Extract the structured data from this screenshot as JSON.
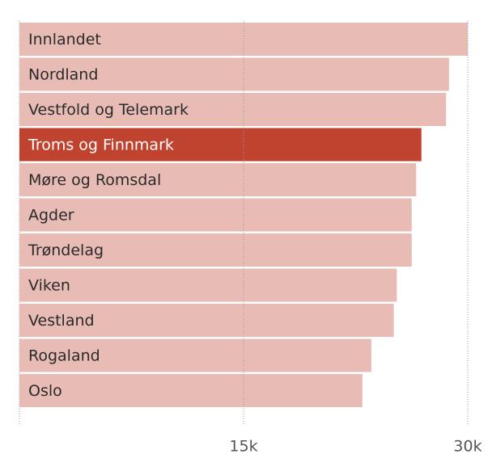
{
  "chart_data": {
    "type": "barh",
    "categories": [
      "Innlandet",
      "Nordland",
      "Vestfold og Telemark",
      "Troms og Finnmark",
      "Møre og Romsdal",
      "Agder",
      "Trøndelag",
      "Viken",
      "Vestland",
      "Rogaland",
      "Oslo"
    ],
    "values": [
      30000,
      28750,
      28550,
      26900,
      26550,
      26250,
      26250,
      25250,
      25050,
      23550,
      22950
    ],
    "colors": [
      "#e8bcb5",
      "#e8bcb5",
      "#e8bcb5",
      "#c0432f",
      "#e8bcb5",
      "#e8bcb5",
      "#e8bcb5",
      "#e8bcb5",
      "#e8bcb5",
      "#e8bcb5",
      "#e8bcb5"
    ],
    "xlim": [
      0,
      30000
    ],
    "xticks": [
      {
        "value": 15000,
        "label": "15k"
      },
      {
        "value": 30000,
        "label": "30k"
      }
    ],
    "grid": true
  }
}
